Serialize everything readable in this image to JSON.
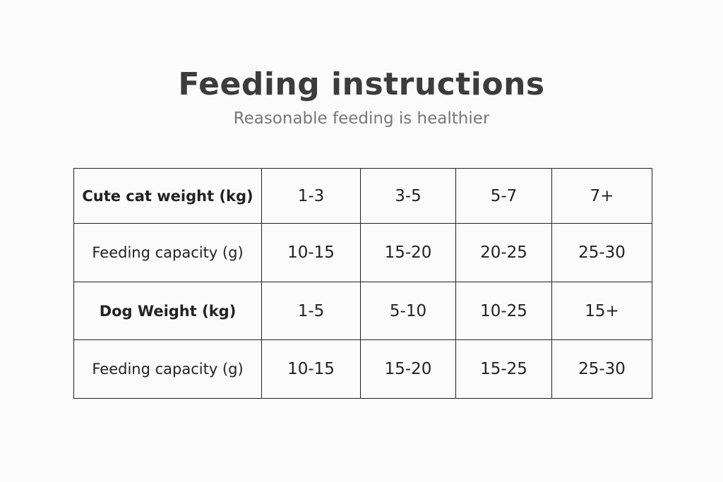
{
  "title": "Feeding instructions",
  "subtitle": "Reasonable feeding is healthier",
  "table": {
    "rows": [
      {
        "label": "Cute cat weight (kg)",
        "values": [
          "1-3",
          "3-5",
          "5-7",
          "7+"
        ]
      },
      {
        "label": "Feeding capacity (g)",
        "values": [
          "10-15",
          "15-20",
          "20-25",
          "25-30"
        ]
      },
      {
        "label": "Dog Weight (kg)",
        "values": [
          "1-5",
          "5-10",
          "10-25",
          "15+"
        ]
      },
      {
        "label": "Feeding capacity (g)",
        "values": [
          "10-15",
          "15-20",
          "15-25",
          "25-30"
        ]
      }
    ]
  }
}
